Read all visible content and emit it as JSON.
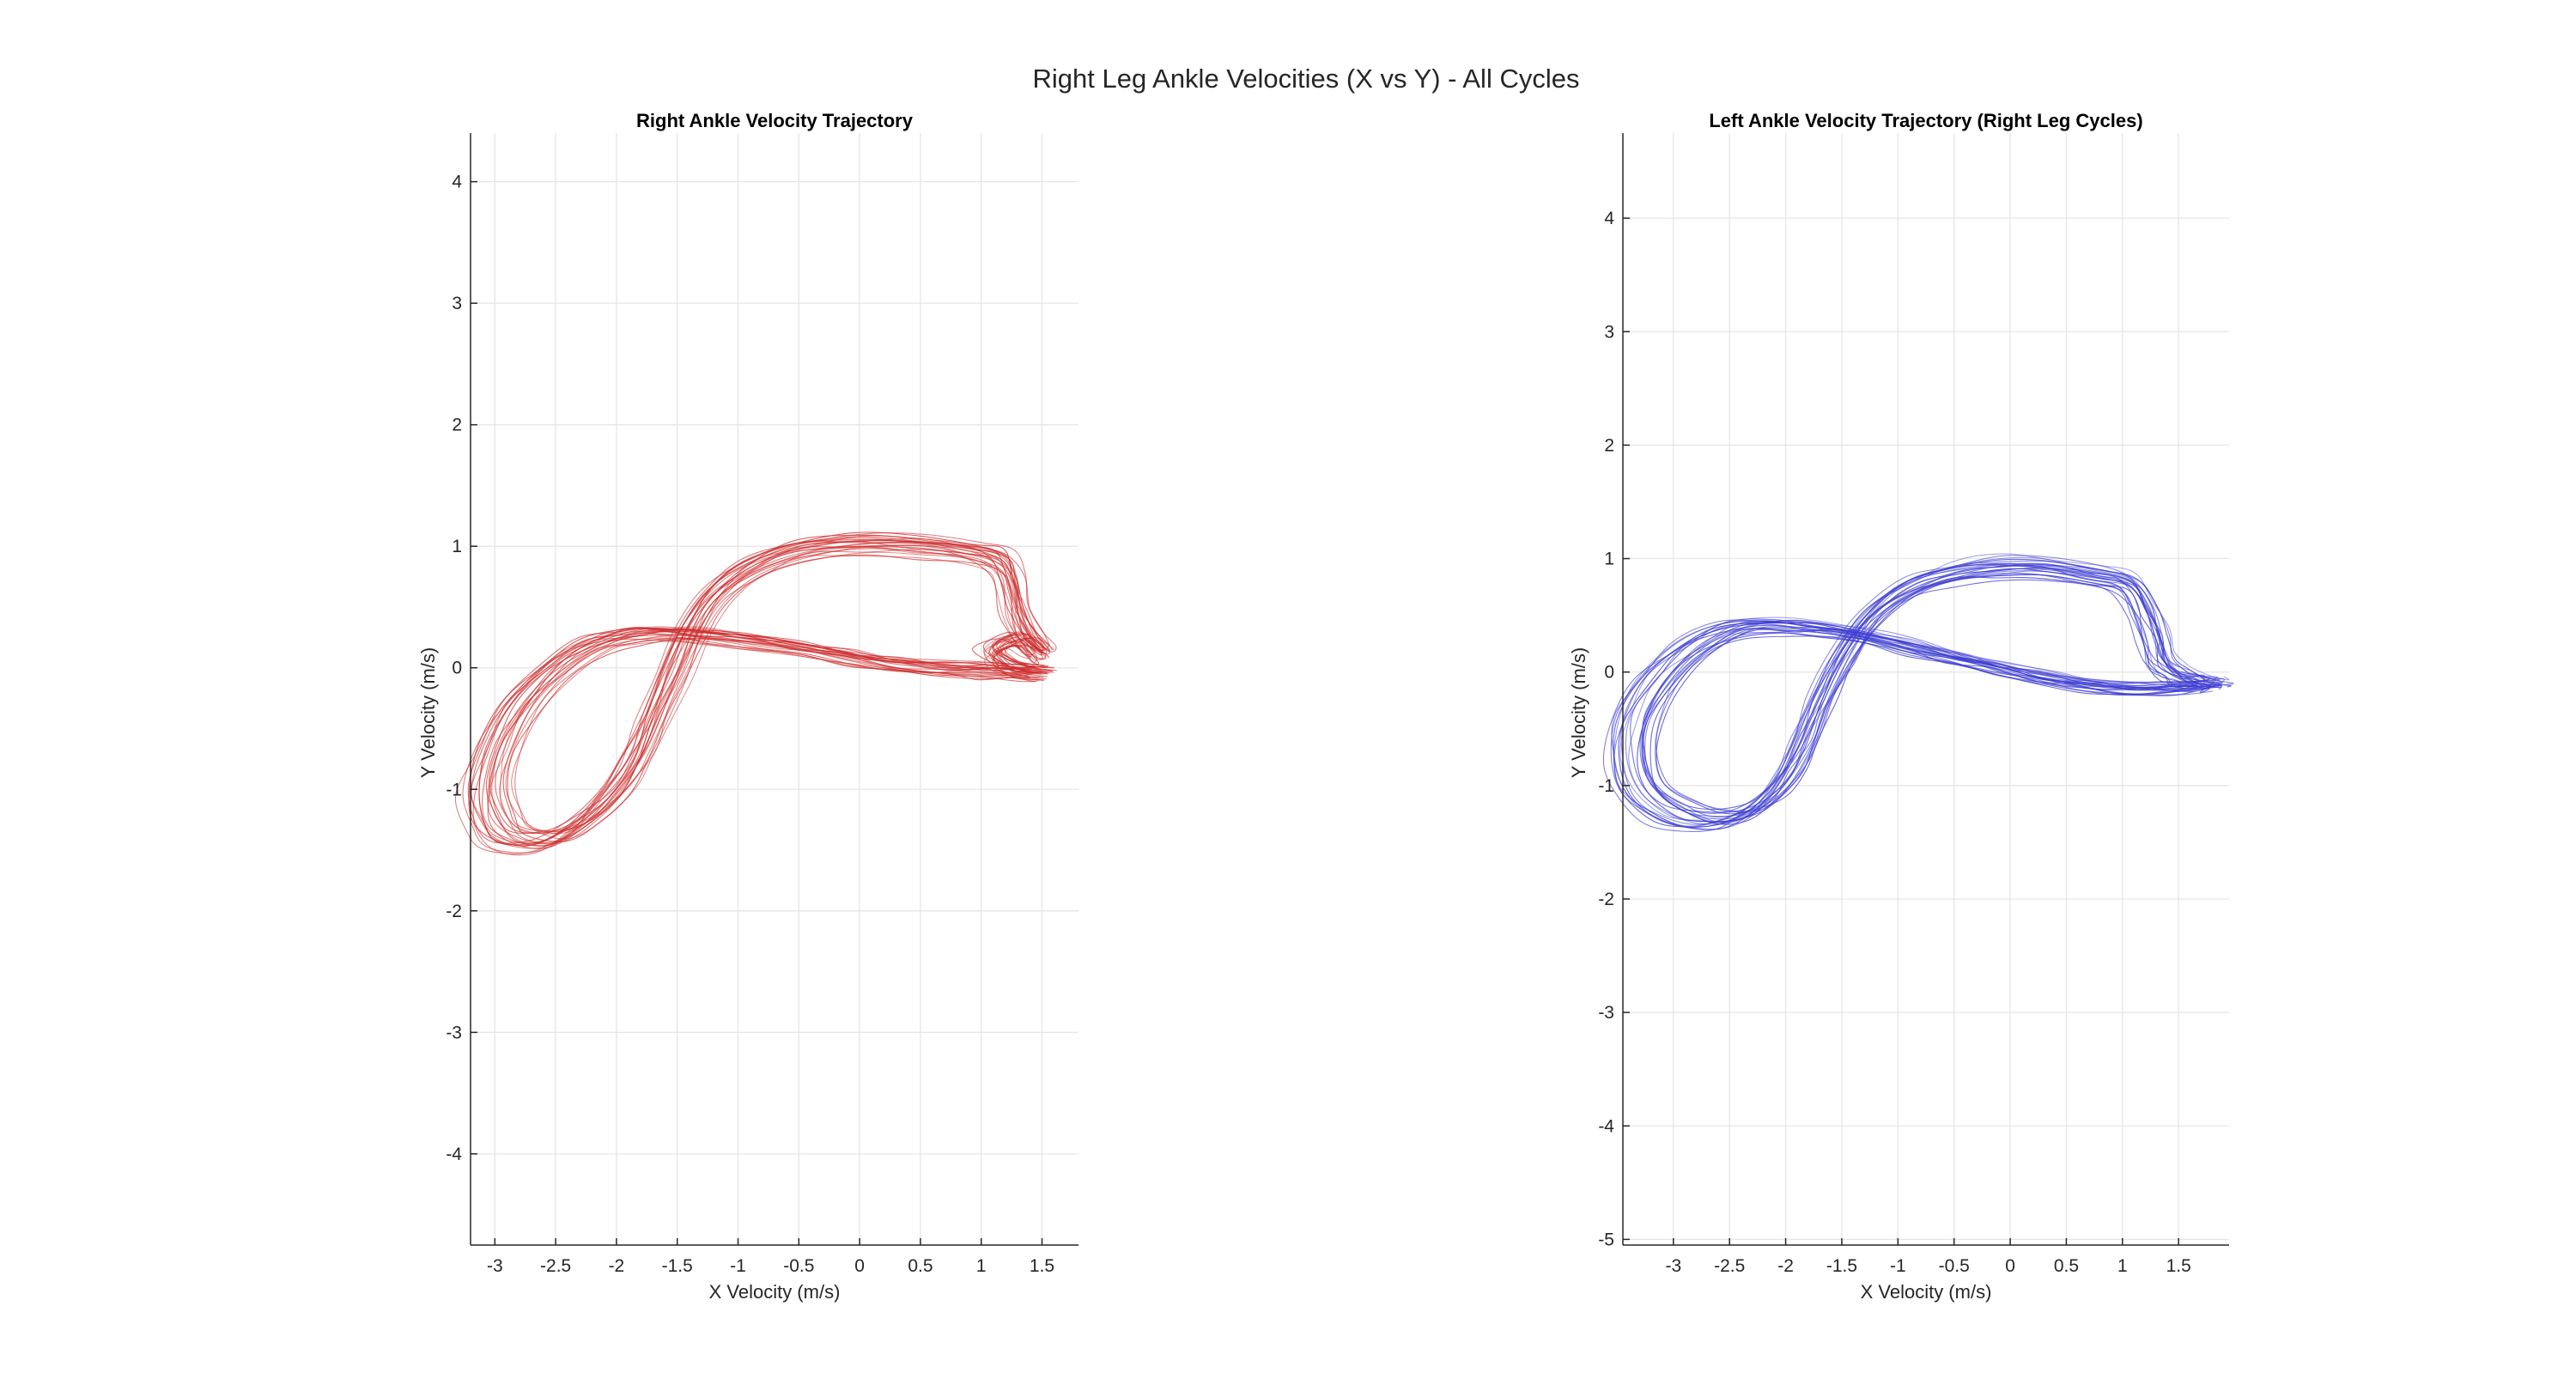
{
  "figure": {
    "title": "Right Leg Ankle Velocities (X vs Y) - All Cycles"
  },
  "chart_data": [
    {
      "type": "line",
      "title": "Right Ankle Velocity Trajectory",
      "xlabel": "X Velocity (m/s)",
      "ylabel": "Y Velocity (m/s)",
      "xlim": [
        -3.2,
        1.8
      ],
      "ylim": [
        -4.75,
        4.4
      ],
      "xticks": [
        -3,
        -2.5,
        -2,
        -1.5,
        -1,
        -0.5,
        0,
        0.5,
        1,
        1.5
      ],
      "xtick_labels": [
        "-3",
        "-2.5",
        "-2",
        "-1.5",
        "-1",
        "-0.5",
        "0",
        "0.5",
        "1",
        "1.5"
      ],
      "yticks": [
        -4,
        -3,
        -2,
        -1,
        0,
        1,
        2,
        3,
        4
      ],
      "ytick_labels": [
        "-4",
        "-3",
        "-2",
        "-1",
        "0",
        "1",
        "2",
        "3",
        "4"
      ],
      "grid": true,
      "color": "#cc2b2b",
      "cycle_count": 24,
      "base_path": {
        "x": [
          1.5,
          1.3,
          1.0,
          0.7,
          0.3,
          -0.1,
          -0.5,
          -0.9,
          -1.3,
          -1.6,
          -1.9,
          -2.2,
          -2.5,
          -2.8,
          -3.0,
          -3.1,
          -3.05,
          -2.9,
          -2.6,
          -2.3,
          -2.05,
          -1.85,
          -1.7,
          -1.55,
          -1.4,
          -1.2,
          -0.9,
          -0.5,
          0.0,
          0.5,
          0.9,
          1.15,
          1.25,
          1.3,
          1.4,
          1.5,
          1.45,
          1.3,
          1.1,
          1.25,
          1.5
        ],
        "y": [
          -0.05,
          -0.05,
          -0.03,
          -0.02,
          0.02,
          0.08,
          0.15,
          0.21,
          0.26,
          0.28,
          0.26,
          0.18,
          0.0,
          -0.3,
          -0.65,
          -1.0,
          -1.25,
          -1.42,
          -1.45,
          -1.3,
          -1.05,
          -0.75,
          -0.4,
          -0.05,
          0.3,
          0.6,
          0.82,
          0.97,
          1.02,
          1.0,
          0.95,
          0.88,
          0.7,
          0.45,
          0.25,
          0.12,
          0.12,
          0.22,
          0.12,
          0.0,
          -0.05
        ]
      }
    },
    {
      "type": "line",
      "title": "Left Ankle Velocity Trajectory (Right Leg Cycles)",
      "xlabel": "X Velocity (m/s)",
      "ylabel": "Y Velocity (m/s)",
      "xlim": [
        -3.45,
        1.95
      ],
      "ylim": [
        -5.05,
        4.75
      ],
      "xticks": [
        -3,
        -2.5,
        -2,
        -1.5,
        -1,
        -0.5,
        0,
        0.5,
        1,
        1.5
      ],
      "xtick_labels": [
        "-3",
        "-2.5",
        "-2",
        "-1.5",
        "-1",
        "-0.5",
        "0",
        "0.5",
        "1",
        "1.5"
      ],
      "yticks": [
        -5,
        -4,
        -3,
        -2,
        -1,
        0,
        1,
        2,
        3,
        4
      ],
      "ytick_labels": [
        "-5",
        "-4",
        "-3",
        "-2",
        "-1",
        "0",
        "1",
        "2",
        "3",
        "4"
      ],
      "grid": true,
      "color": "#3b3bd1",
      "cycle_count": 24,
      "base_path": {
        "x": [
          1.75,
          1.5,
          1.1,
          0.7,
          0.3,
          -0.1,
          -0.5,
          -0.9,
          -1.3,
          -1.7,
          -2.1,
          -2.5,
          -2.85,
          -3.15,
          -3.35,
          -3.4,
          -3.3,
          -3.05,
          -2.75,
          -2.45,
          -2.2,
          -2.0,
          -1.85,
          -1.7,
          -1.5,
          -1.25,
          -0.9,
          -0.5,
          -0.1,
          0.3,
          0.75,
          1.05,
          1.2,
          1.3,
          1.35,
          1.45,
          1.55,
          1.7,
          1.85,
          1.8
        ],
        "y": [
          -0.12,
          -0.15,
          -0.15,
          -0.12,
          -0.05,
          0.03,
          0.12,
          0.22,
          0.31,
          0.38,
          0.41,
          0.38,
          0.22,
          -0.05,
          -0.4,
          -0.75,
          -1.05,
          -1.25,
          -1.33,
          -1.3,
          -1.15,
          -0.9,
          -0.6,
          -0.25,
          0.15,
          0.5,
          0.75,
          0.88,
          0.93,
          0.92,
          0.85,
          0.78,
          0.55,
          0.3,
          0.1,
          0.0,
          -0.05,
          -0.1,
          -0.1,
          -0.12
        ]
      }
    }
  ]
}
